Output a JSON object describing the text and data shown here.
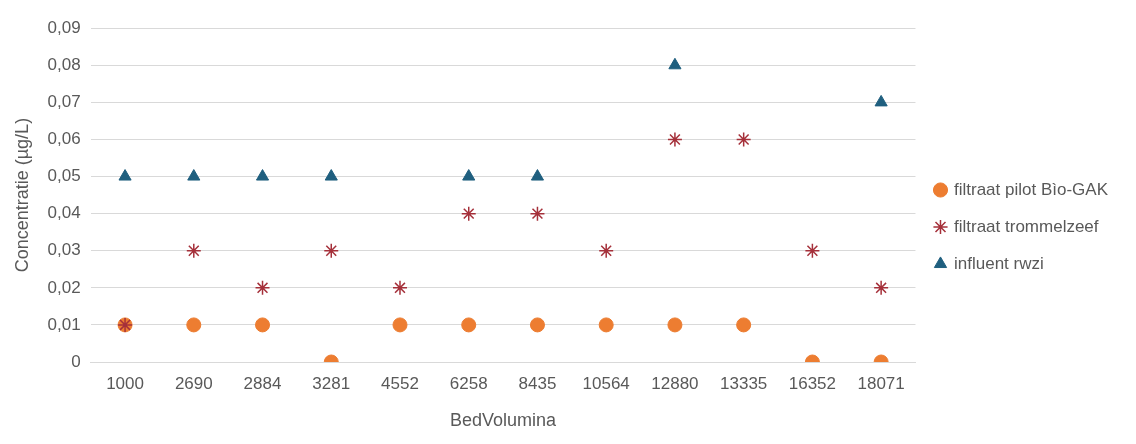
{
  "chart_data": {
    "type": "scatter",
    "xlabel": "BedVolumina",
    "ylabel": "Concentratie (µg/L)",
    "categories": [
      "1000",
      "2690",
      "2884",
      "3281",
      "4552",
      "6258",
      "8435",
      "10564",
      "12880",
      "13335",
      "16352",
      "18071"
    ],
    "series": [
      {
        "name": "filtraat pilot Bìo-GAK",
        "color": "#ed7d31",
        "marker": "circle",
        "values": [
          0.01,
          0.01,
          0.01,
          0,
          0.01,
          0.01,
          0.01,
          0.01,
          0.01,
          0.01,
          0,
          0
        ]
      },
      {
        "name": "filtraat trommelzeef",
        "color": "#a5303a",
        "marker": "cross",
        "values": [
          0.01,
          0.03,
          0.02,
          0.03,
          0.02,
          0.04,
          0.04,
          0.03,
          0.06,
          0.06,
          0.03,
          0.02
        ]
      },
      {
        "name": "influent rwzi",
        "color": "#1f5f7f",
        "marker": "triangle",
        "values": [
          0.05,
          0.05,
          0.05,
          0.05,
          null,
          0.05,
          0.05,
          null,
          0.08,
          null,
          null,
          0.07
        ]
      }
    ],
    "ylim": [
      0,
      0.09
    ],
    "yticks": [
      0,
      {
        "value": 0.01,
        "label": "0,01"
      },
      {
        "value": 0.02,
        "label": "0,02"
      },
      {
        "value": 0.03,
        "label": "0,03"
      },
      {
        "value": 0.04,
        "label": "0,04"
      },
      {
        "value": 0.05,
        "label": "0,05"
      },
      {
        "value": 0.06,
        "label": "0,06"
      },
      {
        "value": 0.07,
        "label": "0,07"
      },
      {
        "value": 0.08,
        "label": "0,08"
      },
      {
        "value": 0.09,
        "label": "0,09"
      }
    ],
    "grid": "y",
    "legend": "right"
  }
}
